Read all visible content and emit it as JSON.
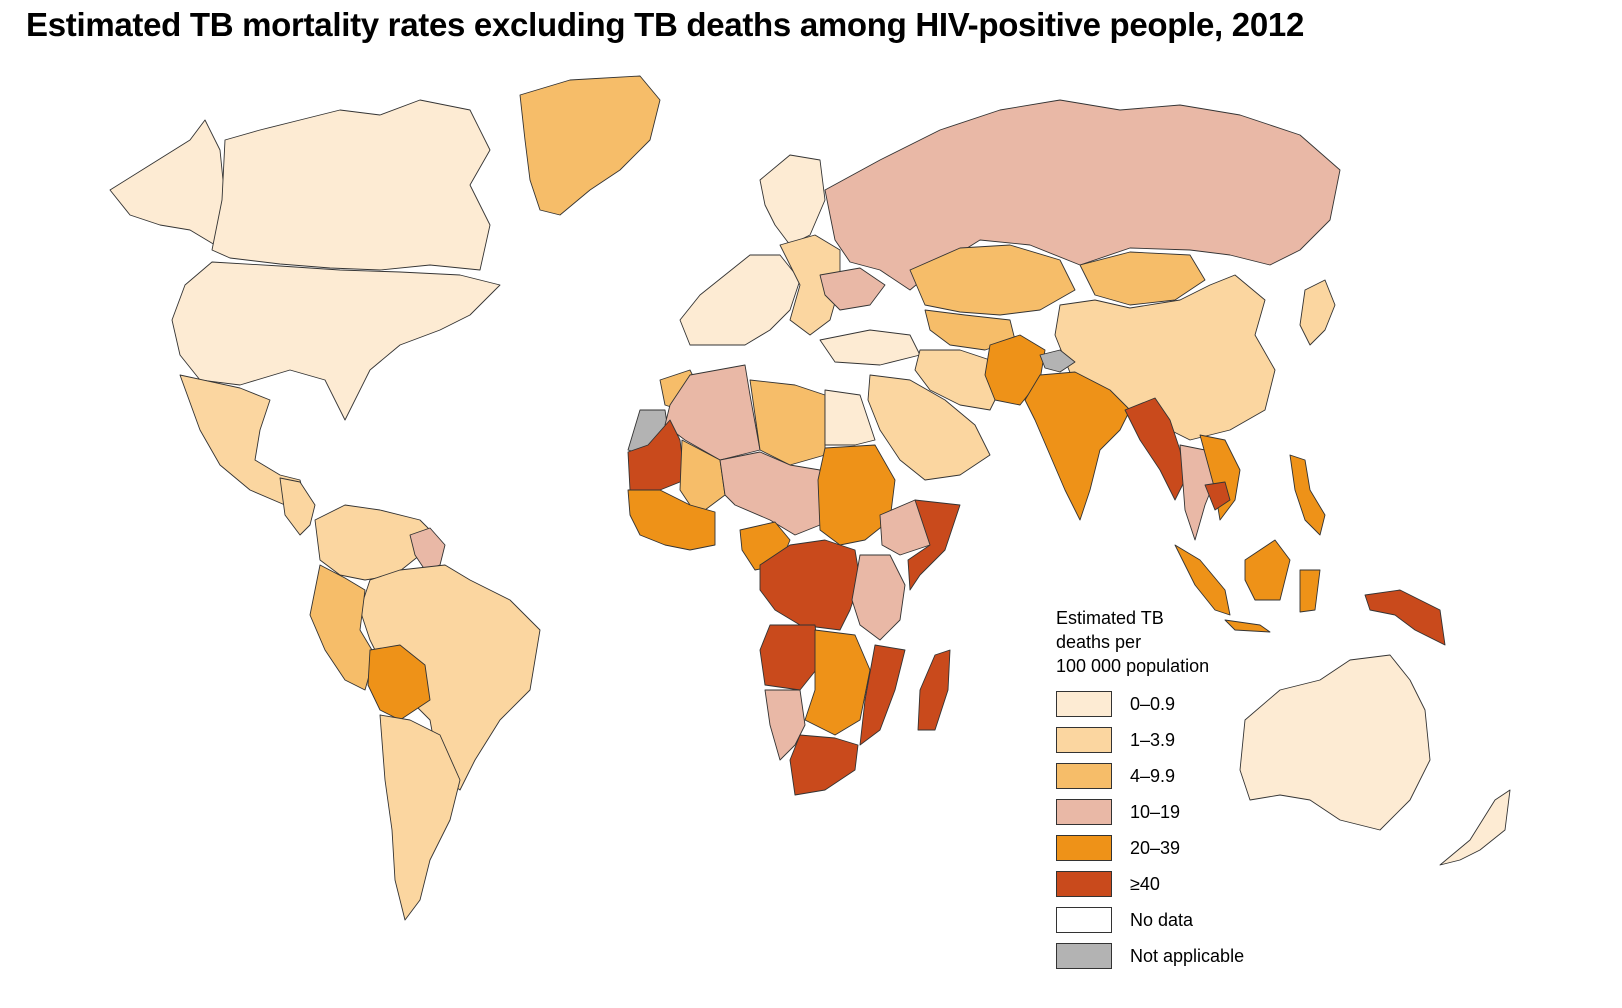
{
  "title": "Estimated TB mortality rates excluding TB deaths among HIV-positive people, 2012",
  "legend": {
    "title_lines": [
      "Estimated TB",
      "deaths per",
      "100 000 population"
    ],
    "placement": "bottom-right",
    "items": [
      {
        "label": "0–0.9",
        "color": "#fdebd3"
      },
      {
        "label": "1–3.9",
        "color": "#fbd6a0"
      },
      {
        "label": "4–9.9",
        "color": "#f6bd69"
      },
      {
        "label": "10–19",
        "color": "#e9b8a6"
      },
      {
        "label": "20–39",
        "color": "#ee9218"
      },
      {
        "label": "≥40",
        "color": "#c94a1c"
      },
      {
        "label": "No data",
        "color": "#ffffff"
      },
      {
        "label": "Not applicable",
        "color": "#b3b3b3"
      }
    ]
  },
  "regions": [
    {
      "name": "canada",
      "category": "0–0.9"
    },
    {
      "name": "usa",
      "category": "0–0.9"
    },
    {
      "name": "alaska",
      "category": "0–0.9"
    },
    {
      "name": "greenland",
      "category": "4–9.9"
    },
    {
      "name": "mexico",
      "category": "1–3.9"
    },
    {
      "name": "central-america",
      "category": "1–3.9"
    },
    {
      "name": "colombia-venezuela",
      "category": "1–3.9"
    },
    {
      "name": "guyana",
      "category": "10–19"
    },
    {
      "name": "brazil",
      "category": "1–3.9"
    },
    {
      "name": "peru",
      "category": "4–9.9"
    },
    {
      "name": "bolivia",
      "category": "20–39"
    },
    {
      "name": "southern-cone",
      "category": "1–3.9"
    },
    {
      "name": "western-europe",
      "category": "0–0.9"
    },
    {
      "name": "scandinavia",
      "category": "0–0.9"
    },
    {
      "name": "eastern-europe",
      "category": "1–3.9"
    },
    {
      "name": "ukraine",
      "category": "10–19"
    },
    {
      "name": "russia",
      "category": "10–19"
    },
    {
      "name": "kazakhstan",
      "category": "4–9.9"
    },
    {
      "name": "central-asia",
      "category": "4–9.9"
    },
    {
      "name": "mongolia",
      "category": "4–9.9"
    },
    {
      "name": "china",
      "category": "1–3.9"
    },
    {
      "name": "korea-japan",
      "category": "1–3.9"
    },
    {
      "name": "turkey",
      "category": "0–0.9"
    },
    {
      "name": "iran",
      "category": "1–3.9"
    },
    {
      "name": "arabia",
      "category": "1–3.9"
    },
    {
      "name": "pakistan-afghanistan",
      "category": "20–39"
    },
    {
      "name": "india",
      "category": "20–39"
    },
    {
      "name": "kashmir",
      "category": "Not applicable"
    },
    {
      "name": "myanmar-bangladesh",
      "category": "≥40"
    },
    {
      "name": "thailand-laos",
      "category": "10–19"
    },
    {
      "name": "vietnam",
      "category": "20–39"
    },
    {
      "name": "cambodia",
      "category": "≥40"
    },
    {
      "name": "philippines",
      "category": "20–39"
    },
    {
      "name": "indonesia",
      "category": "20–39"
    },
    {
      "name": "papua-new-guinea",
      "category": "≥40"
    },
    {
      "name": "australia",
      "category": "0–0.9"
    },
    {
      "name": "new-zealand",
      "category": "0–0.9"
    },
    {
      "name": "morocco",
      "category": "4–9.9"
    },
    {
      "name": "western-sahara",
      "category": "Not applicable"
    },
    {
      "name": "algeria",
      "category": "10–19"
    },
    {
      "name": "libya",
      "category": "4–9.9"
    },
    {
      "name": "egypt",
      "category": "0–0.9"
    },
    {
      "name": "mauritania",
      "category": "≥40"
    },
    {
      "name": "mali",
      "category": "4–9.9"
    },
    {
      "name": "niger-chad",
      "category": "10–19"
    },
    {
      "name": "sudan",
      "category": "20–39"
    },
    {
      "name": "ethiopia",
      "category": "10–19"
    },
    {
      "name": "somalia",
      "category": "≥40"
    },
    {
      "name": "west-africa",
      "category": "20–39"
    },
    {
      "name": "nigeria-cameroon",
      "category": "20–39"
    },
    {
      "name": "central-africa",
      "category": "≥40"
    },
    {
      "name": "east-africa",
      "category": "10–19"
    },
    {
      "name": "angola",
      "category": "≥40"
    },
    {
      "name": "zambia-zimbabwe",
      "category": "20–39"
    },
    {
      "name": "mozambique",
      "category": "≥40"
    },
    {
      "name": "namibia",
      "category": "10–19"
    },
    {
      "name": "south-africa",
      "category": "≥40"
    },
    {
      "name": "madagascar",
      "category": "≥40"
    }
  ]
}
